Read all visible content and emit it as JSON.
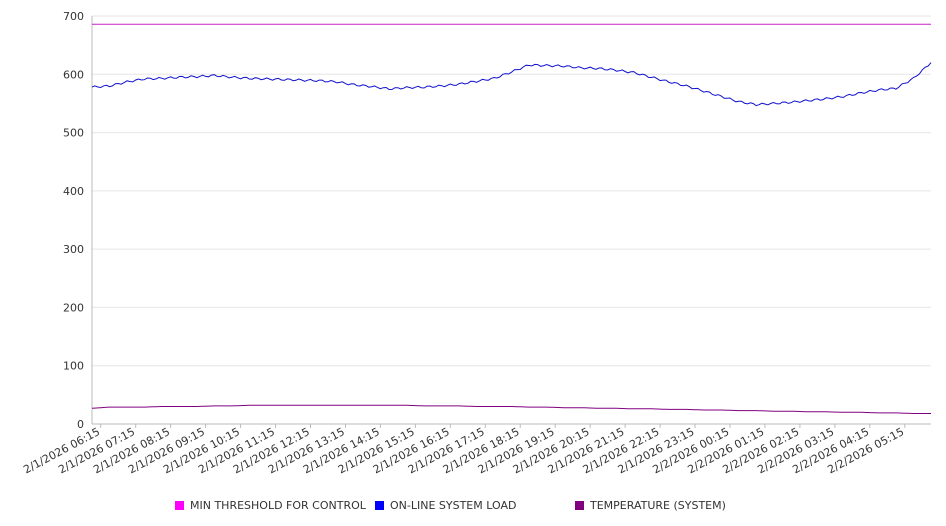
{
  "chart_data": {
    "type": "line",
    "ylim": [
      0,
      700
    ],
    "y_ticks": [
      "0",
      "100",
      "200",
      "300",
      "400",
      "500",
      "600",
      "700"
    ],
    "x_tick_labels": [
      "2/1/2026 06:15",
      "2/1/2026 07:15",
      "2/1/2026 08:15",
      "2/1/2026 09:15",
      "2/1/2026 10:15",
      "2/1/2026 11:15",
      "2/1/2026 12:15",
      "2/1/2026 13:15",
      "2/1/2026 14:15",
      "2/1/2026 15:15",
      "2/1/2026 16:15",
      "2/1/2026 17:15",
      "2/1/2026 18:15",
      "2/1/2026 19:15",
      "2/1/2026 20:15",
      "2/1/2026 21:15",
      "2/1/2026 22:15",
      "2/1/2026 23:15",
      "2/2/2026 00:15",
      "2/2/2026 01:15",
      "2/2/2026 02:15",
      "2/2/2026 03:15",
      "2/2/2026 04:15",
      "2/2/2026 05:15"
    ],
    "x": [
      "2/1/2026 06:00",
      "2/1/2026 06:30",
      "2/1/2026 07:00",
      "2/1/2026 07:30",
      "2/1/2026 08:00",
      "2/1/2026 08:30",
      "2/1/2026 09:00",
      "2/1/2026 09:30",
      "2/1/2026 10:00",
      "2/1/2026 10:30",
      "2/1/2026 11:00",
      "2/1/2026 11:30",
      "2/1/2026 12:00",
      "2/1/2026 12:30",
      "2/1/2026 13:00",
      "2/1/2026 13:30",
      "2/1/2026 14:00",
      "2/1/2026 14:30",
      "2/1/2026 15:00",
      "2/1/2026 15:30",
      "2/1/2026 16:00",
      "2/1/2026 16:30",
      "2/1/2026 17:00",
      "2/1/2026 17:30",
      "2/1/2026 18:00",
      "2/1/2026 18:30",
      "2/1/2026 19:00",
      "2/1/2026 19:30",
      "2/1/2026 20:00",
      "2/1/2026 20:30",
      "2/1/2026 21:00",
      "2/1/2026 21:30",
      "2/1/2026 22:00",
      "2/1/2026 22:30",
      "2/1/2026 23:00",
      "2/1/2026 23:30",
      "2/2/2026 00:00",
      "2/2/2026 00:30",
      "2/2/2026 01:00",
      "2/2/2026 01:30",
      "2/2/2026 02:00",
      "2/2/2026 02:30",
      "2/2/2026 03:00",
      "2/2/2026 03:30",
      "2/2/2026 04:00",
      "2/2/2026 04:30",
      "2/2/2026 05:00",
      "2/2/2026 05:30",
      "2/2/2026 06:00"
    ],
    "series": [
      {
        "name": "MIN THRESHOLD FOR CONTROL",
        "color": "#cc22cc",
        "values": [
          686,
          686,
          686,
          686,
          686,
          686,
          686,
          686,
          686,
          686,
          686,
          686,
          686,
          686,
          686,
          686,
          686,
          686,
          686,
          686,
          686,
          686,
          686,
          686,
          686,
          686,
          686,
          686,
          686,
          686,
          686,
          686,
          686,
          686,
          686,
          686,
          686,
          686,
          686,
          686,
          686,
          686,
          686,
          686,
          686,
          686,
          686,
          686,
          686
        ]
      },
      {
        "name": "ON-LINE SYSTEM LOAD",
        "color": "#1010cc",
        "values": [
          578,
          580,
          587,
          592,
          593,
          595,
          596,
          598,
          595,
          593,
          592,
          591,
          590,
          589,
          587,
          582,
          579,
          575,
          577,
          578,
          580,
          583,
          588,
          593,
          604,
          616,
          615,
          614,
          611,
          610,
          607,
          603,
          595,
          587,
          580,
          571,
          562,
          553,
          548,
          550,
          552,
          555,
          558,
          562,
          568,
          573,
          576,
          593,
          620
        ]
      },
      {
        "name": "TEMPERATURE (SYSTEM)",
        "color": "#800080",
        "values": [
          27,
          29,
          29,
          29,
          30,
          30,
          30,
          31,
          31,
          32,
          32,
          32,
          32,
          32,
          32,
          32,
          32,
          32,
          32,
          31,
          31,
          31,
          30,
          30,
          30,
          29,
          29,
          28,
          28,
          27,
          27,
          26,
          26,
          25,
          25,
          24,
          24,
          23,
          23,
          22,
          22,
          21,
          21,
          20,
          20,
          19,
          19,
          18,
          18
        ]
      }
    ],
    "grid": true,
    "legend": "bottom-center"
  }
}
